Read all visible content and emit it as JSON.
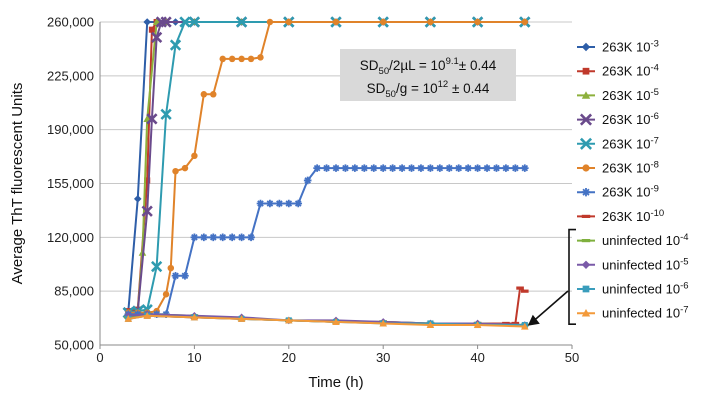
{
  "chart_data": {
    "type": "line",
    "xlabel": "Time (h)",
    "ylabel": "Average ThT fluorescent Units",
    "xlim": [
      0,
      50
    ],
    "ylim": [
      50000,
      260000
    ],
    "xticks": [
      "0",
      "10",
      "20",
      "30",
      "40",
      "50"
    ],
    "yticks": [
      "50,000",
      "85,000",
      "120,000",
      "155,000",
      "190,000",
      "225,000",
      "260,000"
    ],
    "grid": "horizontal",
    "legend_position": "right",
    "annotation": {
      "line1": {
        "base": "SD",
        "sub": "50",
        "mid": "/2µL = 10",
        "sup": "9.1",
        "tail": "± 0.44"
      },
      "line2": {
        "base": "SD",
        "sub": "50",
        "mid": "/g = 10",
        "sup": "12",
        "tail": " ± 0.44"
      }
    },
    "series": [
      {
        "name": "263K 10-3",
        "label_base": "263K 10",
        "label_sup": "-3",
        "color": "#2e5ea8",
        "marker": "diamond",
        "x": [
          3,
          4,
          5,
          6,
          7,
          8,
          10,
          15,
          20,
          25,
          30,
          35,
          40,
          45
        ],
        "y": [
          72000,
          145000,
          260000,
          260000,
          260000,
          260000,
          260000,
          260000,
          260000,
          260000,
          260000,
          260000,
          260000,
          260000
        ]
      },
      {
        "name": "263K 10-4",
        "label_base": "263K 10",
        "label_sup": "-4",
        "color": "#c0392b",
        "marker": "square",
        "x": [
          3,
          4,
          5,
          5.5,
          6,
          7,
          10,
          15,
          20,
          25,
          30,
          35,
          40,
          45
        ],
        "y": [
          72000,
          73000,
          157000,
          255000,
          260000,
          260000,
          260000,
          260000,
          260000,
          260000,
          260000,
          260000,
          260000,
          260000
        ]
      },
      {
        "name": "263K 10-5",
        "label_base": "263K 10",
        "label_sup": "-5",
        "color": "#8db03c",
        "marker": "triangle",
        "x": [
          3,
          4,
          4.5,
          5,
          6,
          7,
          10,
          15,
          20,
          25,
          30,
          35,
          40,
          45
        ],
        "y": [
          71000,
          72000,
          110000,
          197000,
          260000,
          260000,
          260000,
          260000,
          260000,
          260000,
          260000,
          260000,
          260000,
          260000
        ]
      },
      {
        "name": "263K 10-6",
        "label_base": "263K 10",
        "label_sup": "-6",
        "color": "#6a4a8c",
        "marker": "x",
        "x": [
          3,
          4,
          5,
          5.5,
          6,
          6.5,
          7,
          10,
          15,
          20,
          25,
          30,
          35,
          40,
          45
        ],
        "y": [
          71000,
          72000,
          137000,
          197000,
          250000,
          260000,
          260000,
          260000,
          260000,
          260000,
          260000,
          260000,
          260000,
          260000,
          260000
        ]
      },
      {
        "name": "263K 10-7",
        "label_base": "263K 10",
        "label_sup": "-7",
        "color": "#2e9bb0",
        "marker": "x",
        "x": [
          3,
          4,
          5,
          6,
          7,
          8,
          9,
          10,
          15,
          20,
          25,
          30,
          35,
          40,
          45
        ],
        "y": [
          71000,
          72000,
          73000,
          101000,
          200000,
          245000,
          260000,
          260000,
          260000,
          260000,
          260000,
          260000,
          260000,
          260000,
          260000
        ]
      },
      {
        "name": "263K 10-8",
        "label_base": "263K 10",
        "label_sup": "-8",
        "color": "#e0832a",
        "marker": "circle",
        "x": [
          3,
          4,
          5,
          6,
          7,
          7.5,
          8,
          9,
          10,
          11,
          12,
          13,
          14,
          15,
          16,
          17,
          18,
          20,
          25,
          30,
          35,
          40,
          45
        ],
        "y": [
          71000,
          71000,
          71000,
          72000,
          83000,
          100000,
          163000,
          165000,
          173000,
          213000,
          213000,
          236000,
          236000,
          236000,
          236000,
          237000,
          260000,
          260000,
          260000,
          260000,
          260000,
          260000,
          260000
        ]
      },
      {
        "name": "263K 10-9",
        "label_base": "263K 10",
        "label_sup": "-9",
        "color": "#4472c4",
        "marker": "star",
        "x": [
          3,
          4,
          5,
          6,
          7,
          8,
          9,
          10,
          11,
          12,
          13,
          14,
          15,
          16,
          17,
          18,
          19,
          20,
          21,
          22,
          23,
          24,
          25,
          26,
          27,
          28,
          29,
          30,
          31,
          32,
          33,
          34,
          35,
          36,
          37,
          38,
          39,
          40,
          41,
          42,
          43,
          44,
          45
        ],
        "y": [
          70000,
          70000,
          70000,
          70000,
          70000,
          95000,
          95000,
          120000,
          120000,
          120000,
          120000,
          120000,
          120000,
          120000,
          142000,
          142000,
          142000,
          142000,
          142000,
          157000,
          165000,
          165000,
          165000,
          165000,
          165000,
          165000,
          165000,
          165000,
          165000,
          165000,
          165000,
          165000,
          165000,
          165000,
          165000,
          165000,
          165000,
          165000,
          165000,
          165000,
          165000,
          165000,
          165000
        ]
      },
      {
        "name": "263K 10-10",
        "label_base": "263K 10",
        "label_sup": "-10",
        "color": "#c0392b",
        "marker": "dash",
        "x": [
          3,
          5,
          10,
          15,
          20,
          25,
          30,
          35,
          40,
          43,
          44,
          44.5,
          45
        ],
        "y": [
          68000,
          69000,
          68000,
          67000,
          66000,
          65000,
          65000,
          64000,
          64000,
          64000,
          64000,
          87000,
          85000
        ]
      },
      {
        "name": "uninfected 10-4",
        "label_base": "uninfected 10",
        "label_sup": "-4",
        "color": "#7fb03e",
        "marker": "dash",
        "x": [
          3,
          5,
          10,
          15,
          20,
          25,
          30,
          35,
          40,
          45
        ],
        "y": [
          68000,
          70000,
          69000,
          67000,
          66000,
          65000,
          65000,
          64000,
          64000,
          63000
        ]
      },
      {
        "name": "uninfected 10-5",
        "label_base": "uninfected 10",
        "label_sup": "-5",
        "color": "#7a5aa8",
        "marker": "diamond",
        "x": [
          3,
          5,
          10,
          15,
          20,
          25,
          30,
          35,
          40,
          45
        ],
        "y": [
          69000,
          70000,
          69000,
          68000,
          66000,
          66000,
          65000,
          64000,
          64000,
          63000
        ]
      },
      {
        "name": "uninfected 10-6",
        "label_base": "uninfected 10",
        "label_sup": "-6",
        "color": "#3a9dbc",
        "marker": "square",
        "x": [
          3,
          5,
          10,
          15,
          20,
          25,
          30,
          35,
          40,
          45
        ],
        "y": [
          67000,
          69000,
          68000,
          67000,
          66000,
          65000,
          64000,
          64000,
          63000,
          63000
        ]
      },
      {
        "name": "uninfected 10-7",
        "label_base": "uninfected 10",
        "label_sup": "-7",
        "color": "#f39a3a",
        "marker": "triangle",
        "x": [
          3,
          5,
          10,
          15,
          20,
          25,
          30,
          35,
          40,
          45
        ],
        "y": [
          67000,
          69000,
          68000,
          67000,
          66000,
          65000,
          64000,
          63000,
          63000,
          62000
        ]
      }
    ]
  }
}
